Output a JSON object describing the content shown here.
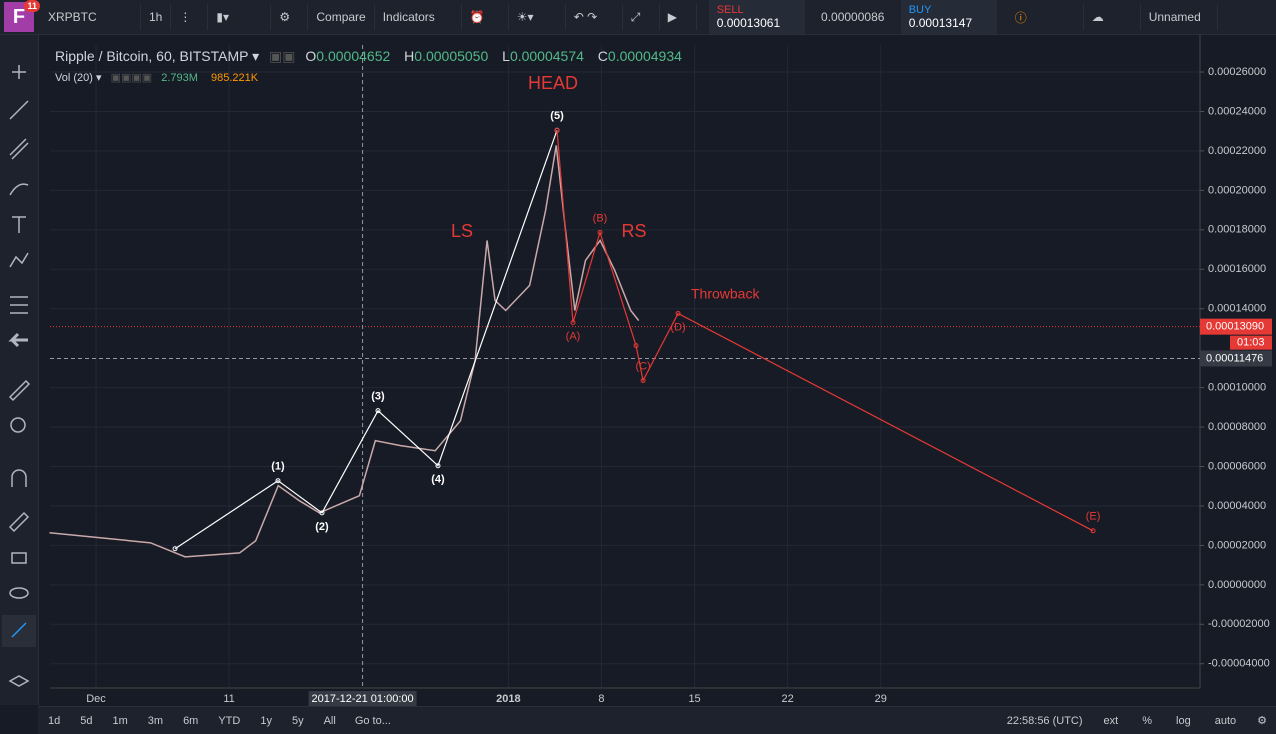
{
  "toolbar": {
    "badge": "11",
    "symbol": "XRPBTC",
    "interval": "1h",
    "compare": "Compare",
    "indicators": "Indicators",
    "sell_label": "SELL",
    "sell_price": "0.00013061",
    "spread": "0.00000086",
    "buy_label": "BUY",
    "buy_price": "0.00013147",
    "layout": "Unnamed"
  },
  "legend": {
    "title": "Ripple / Bitcoin, 60, BITSTAMP",
    "o_label": "O",
    "o": "0.00004652",
    "h_label": "H",
    "h": "0.00005050",
    "l_label": "L",
    "l": "0.00004574",
    "c_label": "C",
    "c": "0.00004934",
    "vol": "Vol (20)",
    "vol1": "2.793M",
    "vol2": "985.221K"
  },
  "chart_data": {
    "type": "line",
    "xlim": [
      -3.46,
      83.0
    ],
    "xticks": [
      {
        "value": 0,
        "label": "Dec"
      },
      {
        "value": 10,
        "label": "11"
      },
      {
        "value": 31,
        "label": "2018"
      },
      {
        "value": 38,
        "label": "8"
      },
      {
        "value": 45,
        "label": "15"
      },
      {
        "value": 52,
        "label": "22"
      },
      {
        "value": 59,
        "label": "29"
      }
    ],
    "ylim": [
      -5.23e-05,
      0.0002737
    ],
    "yticks": [
      {
        "value": 0.00026,
        "label": "0.00026000"
      },
      {
        "value": 0.00024,
        "label": "0.00024000"
      },
      {
        "value": 0.00022,
        "label": "0.00022000"
      },
      {
        "value": 0.0002,
        "label": "0.00020000"
      },
      {
        "value": 0.00018,
        "label": "0.00018000"
      },
      {
        "value": 0.00016,
        "label": "0.00016000"
      },
      {
        "value": 0.00014,
        "label": "0.00014000"
      },
      {
        "value": 0.0001,
        "label": "0.00010000"
      },
      {
        "value": 8e-05,
        "label": "0.00008000"
      },
      {
        "value": 6e-05,
        "label": "0.00006000"
      },
      {
        "value": 4e-05,
        "label": "0.00004000"
      },
      {
        "value": 2e-05,
        "label": "0.00002000"
      },
      {
        "value": 0,
        "label": "0.00000000"
      },
      {
        "value": -2e-05,
        "label": "-0.00002000"
      },
      {
        "value": -4e-05,
        "label": "-0.00004000"
      }
    ],
    "grid": true,
    "series": [
      {
        "color": "#c9a9a9",
        "x": [
          -3.5,
          0.3,
          4.1,
          6.7,
          10.8,
          12.0,
          13.7,
          15.3,
          16.8,
          19.8,
          21.0,
          22.9,
          25.5,
          27.4,
          28.5,
          29.4,
          30.0,
          30.8,
          32.6,
          33.8,
          34.6,
          35.3,
          36.0,
          36.8,
          37.9,
          39.0,
          40.2,
          40.8
        ],
        "values": [
          2.64e-05,
          2.39e-05,
          2.13e-05,
          1.42e-05,
          1.62e-05,
          2.23e-05,
          5.03e-05,
          4.26e-05,
          3.65e-05,
          4.52e-05,
          7.31e-05,
          7.06e-05,
          6.8e-05,
          8.32e-05,
          0.0001137,
          0.0001746,
          0.0001442,
          0.0001391,
          0.0001518,
          0.0001898,
          0.0002228,
          0.0001797,
          0.0001391,
          0.0001645,
          0.0001746,
          0.0001594,
          0.0001391,
          0.000134
        ]
      },
      {
        "color": "#ffffff",
        "x": [
          5.94,
          13.68,
          16.99,
          21.2,
          25.71,
          34.66
        ],
        "values": [
          1.83e-05,
          5.28e-05,
          3.65e-05,
          8.83e-05,
          6.04e-05,
          0.0002305
        ],
        "point_labels": [
          null,
          "(1)",
          "(2)",
          "(3)",
          "(4)",
          "(5)"
        ]
      },
      {
        "color": "#e53935",
        "x": [
          34.66,
          35.86,
          37.89,
          40.6,
          41.13,
          43.76,
          74.96
        ],
        "values": [
          0.0002305,
          0.000133,
          0.0001787,
          0.0001213,
          0.0001036,
          0.0001376,
          2.74e-05
        ],
        "point_labels": [
          null,
          "(A)",
          "(B)",
          null,
          "(C)",
          "(D)",
          "(E)"
        ]
      }
    ],
    "annotations": [
      "HEAD",
      "LS",
      "RS",
      "Throwback"
    ],
    "price_line": {
      "value": 0.0001309,
      "label": "0.00013090",
      "countdown": "01:03",
      "color": "#e53935"
    },
    "crosshair": {
      "x": 20.04,
      "x_label": "2017-12-21 01:00:00",
      "y": 0.00011476,
      "y_label": "0.00011476"
    }
  },
  "bottom_bar": {
    "ranges": [
      "1d",
      "5d",
      "1m",
      "3m",
      "6m",
      "YTD",
      "1y",
      "5y",
      "All"
    ],
    "goto": "Go to...",
    "clock": "22:58:56 (UTC)",
    "options": [
      "ext",
      "%",
      "log",
      "auto"
    ]
  }
}
